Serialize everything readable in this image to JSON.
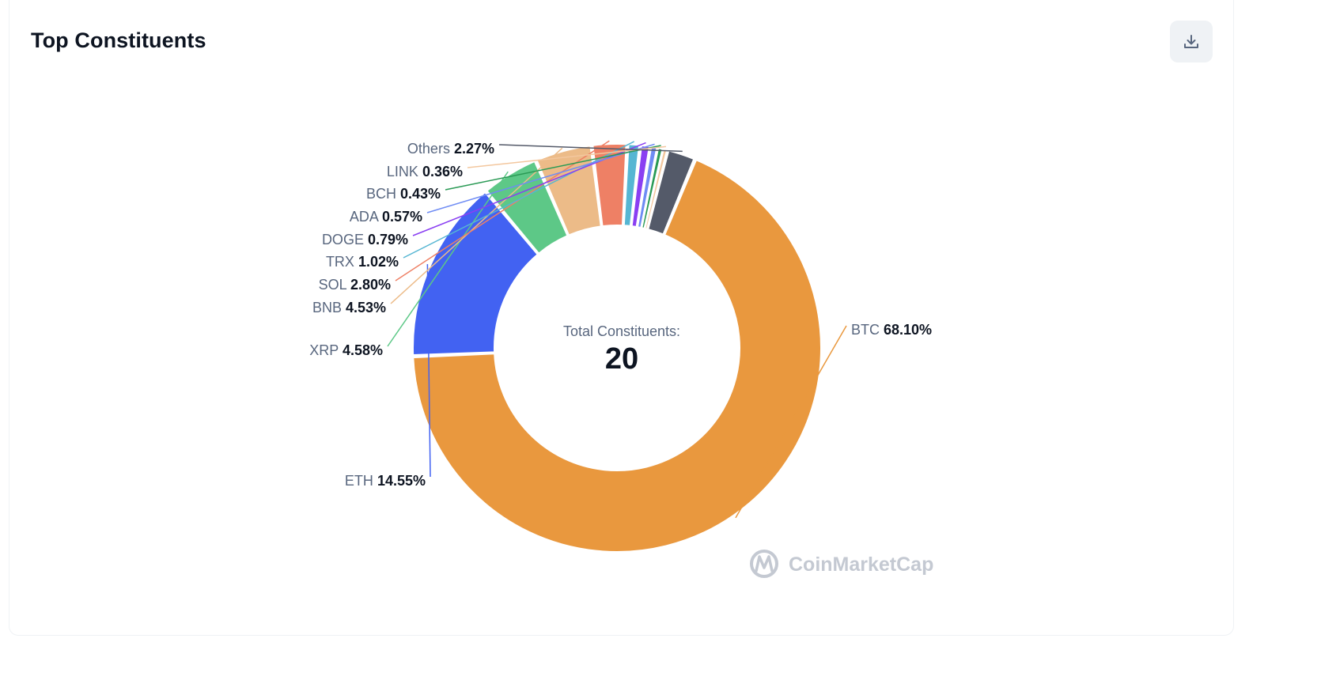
{
  "header": {
    "title": "Top Constituents"
  },
  "toolbar": {
    "download_icon": "download-icon"
  },
  "center": {
    "caption": "Total Constituents:",
    "value": "20"
  },
  "watermark": {
    "text": "CoinMarketCap"
  },
  "chart_data": {
    "type": "pie",
    "variant": "donut",
    "title": "Top Constituents",
    "center_label": "Total Constituents:",
    "center_value": 20,
    "slices": [
      {
        "name": "BTC",
        "value": 68.1,
        "label": "68.10%",
        "color": "#e9983e"
      },
      {
        "name": "ETH",
        "value": 14.55,
        "label": "14.55%",
        "color": "#4262f2"
      },
      {
        "name": "XRP",
        "value": 4.58,
        "label": "4.58%",
        "color": "#5dc887"
      },
      {
        "name": "BNB",
        "value": 4.53,
        "label": "4.53%",
        "color": "#ecbb88"
      },
      {
        "name": "SOL",
        "value": 2.8,
        "label": "2.80%",
        "color": "#ee8065"
      },
      {
        "name": "TRX",
        "value": 1.02,
        "label": "1.02%",
        "color": "#56b6d3"
      },
      {
        "name": "DOGE",
        "value": 0.79,
        "label": "0.79%",
        "color": "#8a3ff2"
      },
      {
        "name": "ADA",
        "value": 0.57,
        "label": "0.57%",
        "color": "#6f8cf4"
      },
      {
        "name": "BCH",
        "value": 0.43,
        "label": "0.43%",
        "color": "#2a9a55"
      },
      {
        "name": "LINK",
        "value": 0.36,
        "label": "0.36%",
        "color": "#f3c79e"
      },
      {
        "name": "Others",
        "value": 2.27,
        "label": "2.27%",
        "color": "#545a69"
      }
    ]
  }
}
